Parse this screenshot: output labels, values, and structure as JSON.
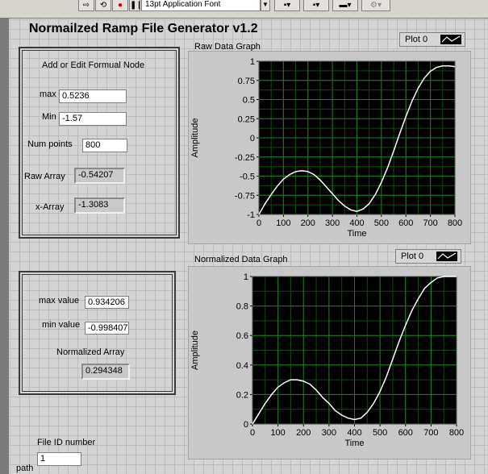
{
  "toolbar": {
    "font_select": "13pt Application Font",
    "font_arrow": "▼"
  },
  "title": "Normailzed Ramp File Generator v1.2",
  "formula_panel": {
    "heading": "Add or Edit Formual Node",
    "max_label": "max",
    "max_value": "0.5236",
    "min_label": "Min",
    "min_value": "-1.57",
    "num_points_label": "Num points",
    "num_points_value": "800",
    "raw_array_label": "Raw Array",
    "raw_array_value": "-0.54207",
    "x_array_label": "x-Array",
    "x_array_value": "-1.3083"
  },
  "normalize_panel": {
    "max_value_label": "max value",
    "max_value": "0.934206",
    "min_value_label": "min value",
    "min_value": "-0.998407",
    "normalized_array_label": "Normalized Array",
    "normalized_array_value": "0.294348"
  },
  "file": {
    "file_id_label": "File ID number",
    "file_id_value": "1",
    "path_label": "path"
  },
  "graphs": {
    "raw_title": "Raw Data Graph",
    "normalized_title": "Normalized Data Graph",
    "legend_label": "Plot 0"
  },
  "chart_data": [
    {
      "type": "line",
      "title": "Raw Data Graph",
      "xlabel": "Time",
      "ylabel": "Amplitude",
      "xlim": [
        0,
        800
      ],
      "ylim": [
        -1,
        1
      ],
      "x_ticks": [
        "0",
        "100",
        "200",
        "300",
        "400",
        "500",
        "600",
        "700",
        "800"
      ],
      "y_ticks": [
        "1",
        "0.75",
        "0.5",
        "0.25",
        "0",
        "-0.25",
        "-0.5",
        "-0.75",
        "-1"
      ],
      "grid": true,
      "background": "#000000",
      "grid_color": "#1f7a1f",
      "line_color": "#ffffff",
      "series": [
        {
          "name": "Plot 0",
          "x": [
            0,
            25,
            50,
            75,
            100,
            125,
            150,
            175,
            200,
            225,
            250,
            275,
            300,
            325,
            350,
            375,
            400,
            425,
            450,
            475,
            500,
            525,
            550,
            575,
            600,
            625,
            650,
            675,
            700,
            725,
            750,
            775,
            800
          ],
          "y": [
            -1.0,
            -0.86,
            -0.74,
            -0.63,
            -0.54,
            -0.48,
            -0.44,
            -0.43,
            -0.44,
            -0.48,
            -0.55,
            -0.64,
            -0.73,
            -0.82,
            -0.89,
            -0.94,
            -0.96,
            -0.93,
            -0.86,
            -0.74,
            -0.58,
            -0.39,
            -0.17,
            0.06,
            0.28,
            0.48,
            0.65,
            0.78,
            0.87,
            0.92,
            0.94,
            0.94,
            0.93
          ]
        }
      ]
    },
    {
      "type": "line",
      "title": "Normalized Data Graph",
      "xlabel": "Time",
      "ylabel": "Amplitude",
      "xlim": [
        0,
        800
      ],
      "ylim": [
        0,
        1
      ],
      "x_ticks": [
        "0",
        "100",
        "200",
        "300",
        "400",
        "500",
        "600",
        "700",
        "800"
      ],
      "y_ticks": [
        "1",
        "0.8",
        "0.6",
        "0.4",
        "0.2",
        "0"
      ],
      "grid": true,
      "background": "#000000",
      "grid_color": "#1f7a1f",
      "line_color": "#ffffff",
      "series": [
        {
          "name": "Plot 0",
          "x": [
            0,
            25,
            50,
            75,
            100,
            125,
            150,
            175,
            200,
            225,
            250,
            275,
            300,
            325,
            350,
            375,
            400,
            425,
            450,
            475,
            500,
            525,
            550,
            575,
            600,
            625,
            650,
            675,
            700,
            725,
            750,
            775,
            800
          ],
          "y": [
            0.0,
            0.07,
            0.14,
            0.2,
            0.25,
            0.28,
            0.3,
            0.3,
            0.29,
            0.27,
            0.23,
            0.18,
            0.14,
            0.09,
            0.06,
            0.04,
            0.03,
            0.04,
            0.08,
            0.14,
            0.22,
            0.32,
            0.44,
            0.56,
            0.67,
            0.77,
            0.85,
            0.92,
            0.96,
            0.99,
            1.0,
            1.0,
            1.0
          ]
        }
      ]
    }
  ]
}
